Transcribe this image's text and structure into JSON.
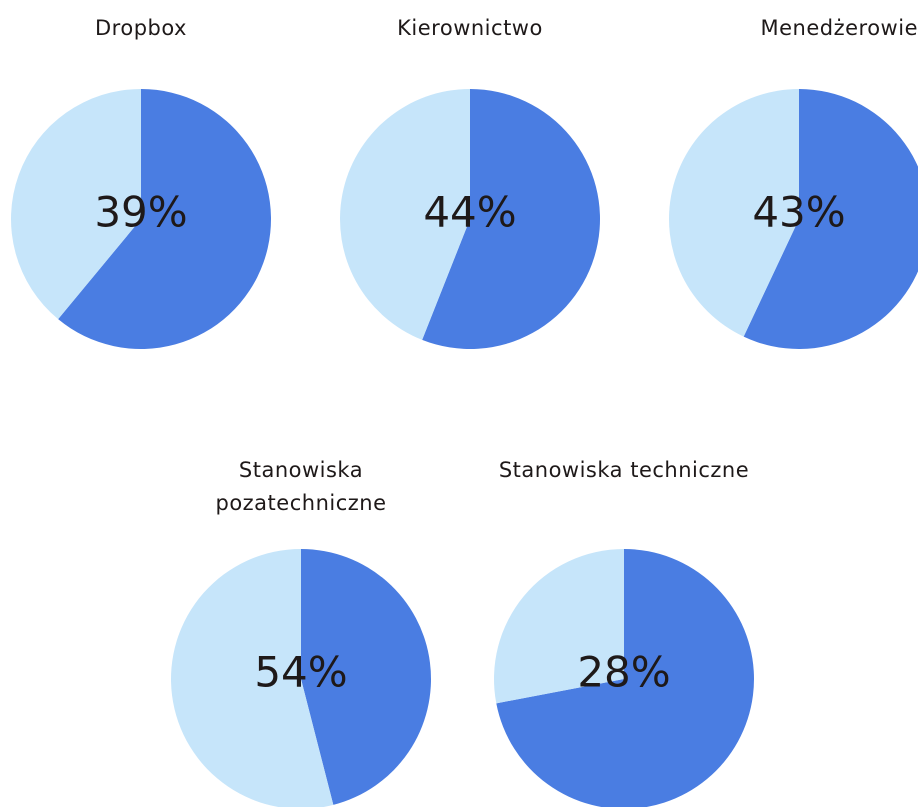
{
  "chart_data": [
    {
      "type": "pie",
      "title": "Dropbox",
      "values": [
        61,
        39
      ],
      "value_labels": [
        null,
        "39%"
      ],
      "colors": [
        "#4a7de2",
        "#c6e5fa"
      ]
    },
    {
      "type": "pie",
      "title": "Kierownictwo",
      "values": [
        56,
        44
      ],
      "value_labels": [
        null,
        "44%"
      ],
      "colors": [
        "#4a7de2",
        "#c6e5fa"
      ]
    },
    {
      "type": "pie",
      "title": "Menedżerowie",
      "values": [
        57,
        43
      ],
      "value_labels": [
        null,
        "43%"
      ],
      "colors": [
        "#4a7de2",
        "#c6e5fa"
      ]
    },
    {
      "type": "pie",
      "title": "Stanowiska pozatechniczne",
      "values": [
        46,
        54
      ],
      "value_labels": [
        null,
        "54%"
      ],
      "colors": [
        "#4a7de2",
        "#c6e5fa"
      ]
    },
    {
      "type": "pie",
      "title": "Stanowiska techniczne",
      "values": [
        72,
        28
      ],
      "value_labels": [
        null,
        "28%"
      ],
      "colors": [
        "#4a7de2",
        "#c6e5fa"
      ]
    }
  ]
}
